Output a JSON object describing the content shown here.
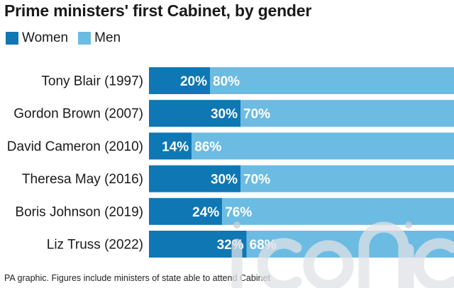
{
  "title": "Prime ministers' first Cabinet, by gender",
  "legend": [
    {
      "label": "Women",
      "color": "#0e77b4"
    },
    {
      "label": "Men",
      "color": "#6cbbe3"
    }
  ],
  "footer": "PA graphic. Figures include ministers of state able to attend Cabinet",
  "watermark_text": "iconic",
  "chart_data": {
    "type": "bar",
    "orientation": "horizontal",
    "stacked": true,
    "normalized": true,
    "title": "Prime ministers' first Cabinet, by gender",
    "xlabel": "",
    "ylabel": "",
    "xlim": [
      0,
      100
    ],
    "grid": false,
    "legend_position": "top-left",
    "categories": [
      "Tony Blair (1997)",
      "Gordon Brown (2007)",
      "David Cameron (2010)",
      "Theresa May (2016)",
      "Boris Johnson (2019)",
      "Liz Truss (2022)"
    ],
    "series": [
      {
        "name": "Women",
        "color": "#0e77b4",
        "values": [
          20,
          30,
          14,
          30,
          24,
          32
        ],
        "labels": [
          "20%",
          "30%",
          "14%",
          "30%",
          "24%",
          "32%"
        ]
      },
      {
        "name": "Men",
        "color": "#6cbbe3",
        "values": [
          80,
          70,
          86,
          70,
          76,
          68
        ],
        "labels": [
          "80%",
          "70%",
          "86%",
          "70%",
          "76%",
          "68%"
        ]
      }
    ]
  }
}
